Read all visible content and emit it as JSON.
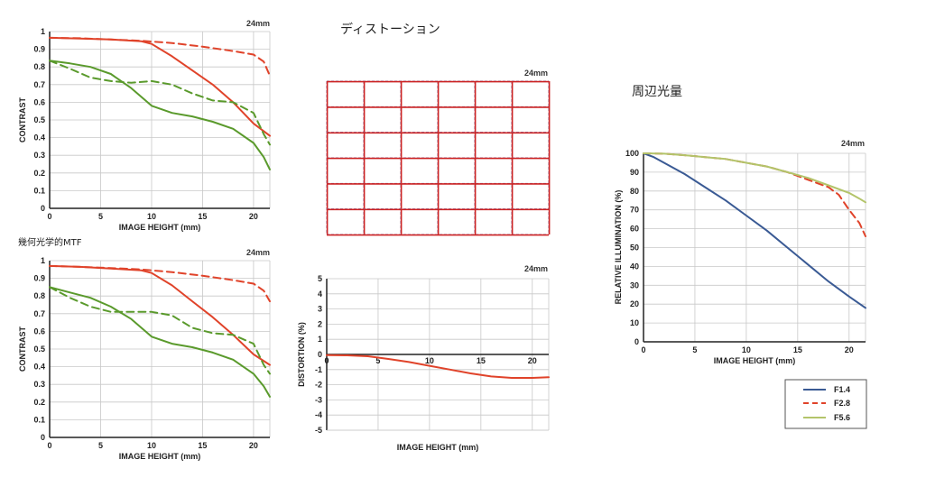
{
  "headings": {
    "distortion": "ディストーション",
    "illumination": "周辺光量",
    "mtf": "幾何光学的MTF"
  },
  "lens_label": "24mm",
  "colors": {
    "red": "#e0432a",
    "green": "#5a9a2c",
    "blue": "#3a5a94",
    "yellowgreen": "#b3c46a",
    "grid": "#c8c8c8",
    "dist_grid": "#cc2222",
    "dist_grid_alt": "#7a7ab8"
  },
  "chart_data": [
    {
      "id": "mtf1",
      "type": "line",
      "title": "24mm",
      "xlabel": "IMAGE HEIGHT (mm)",
      "ylabel": "CONTRAST",
      "xlim": [
        0,
        21.6
      ],
      "ylim": [
        0,
        1
      ],
      "xticks": [
        "0",
        "5",
        "10",
        "15",
        "20"
      ],
      "yticks": [
        "0",
        "0.1",
        "0.2",
        "0.3",
        "0.4",
        "0.5",
        "0.6",
        "0.7",
        "0.8",
        "0.9",
        "1"
      ],
      "grid": true,
      "series": [
        {
          "color": "red",
          "dash": false,
          "x": [
            0,
            3,
            6,
            9,
            10,
            12,
            14,
            16,
            18,
            20,
            21.6
          ],
          "y": [
            0.965,
            0.96,
            0.955,
            0.945,
            0.93,
            0.86,
            0.78,
            0.7,
            0.6,
            0.48,
            0.41
          ]
        },
        {
          "color": "red",
          "dash": true,
          "x": [
            0,
            3,
            6,
            9,
            12,
            15,
            18,
            20,
            21,
            21.6
          ],
          "y": [
            0.965,
            0.962,
            0.955,
            0.948,
            0.935,
            0.915,
            0.89,
            0.87,
            0.83,
            0.75
          ]
        },
        {
          "color": "green",
          "dash": false,
          "x": [
            0,
            2,
            4,
            6,
            8,
            10,
            12,
            14,
            16,
            18,
            20,
            21,
            21.6
          ],
          "y": [
            0.835,
            0.82,
            0.8,
            0.76,
            0.68,
            0.58,
            0.54,
            0.52,
            0.49,
            0.45,
            0.37,
            0.29,
            0.22
          ]
        },
        {
          "color": "green",
          "dash": true,
          "x": [
            0,
            2,
            4,
            6,
            8,
            10,
            12,
            14,
            16,
            18,
            20,
            21,
            21.6
          ],
          "y": [
            0.835,
            0.79,
            0.74,
            0.72,
            0.71,
            0.72,
            0.7,
            0.65,
            0.61,
            0.6,
            0.54,
            0.42,
            0.36
          ]
        }
      ]
    },
    {
      "id": "mtf2",
      "type": "line",
      "title": "24mm",
      "xlabel": "IMAGE HEIGHT (mm)",
      "ylabel": "CONTRAST",
      "xlim": [
        0,
        21.6
      ],
      "ylim": [
        0,
        1
      ],
      "xticks": [
        "0",
        "5",
        "10",
        "15",
        "20"
      ],
      "yticks": [
        "0",
        "0.1",
        "0.2",
        "0.3",
        "0.4",
        "0.5",
        "0.6",
        "0.7",
        "0.8",
        "0.9",
        "1"
      ],
      "grid": true,
      "series": [
        {
          "color": "red",
          "dash": false,
          "x": [
            0,
            3,
            6,
            9,
            10,
            12,
            14,
            16,
            18,
            20,
            21.6
          ],
          "y": [
            0.97,
            0.965,
            0.955,
            0.945,
            0.93,
            0.86,
            0.77,
            0.68,
            0.58,
            0.47,
            0.41
          ]
        },
        {
          "color": "red",
          "dash": true,
          "x": [
            0,
            3,
            6,
            9,
            12,
            15,
            18,
            20,
            21,
            21.6
          ],
          "y": [
            0.97,
            0.965,
            0.958,
            0.95,
            0.935,
            0.915,
            0.89,
            0.87,
            0.83,
            0.77
          ]
        },
        {
          "color": "green",
          "dash": false,
          "x": [
            0,
            2,
            4,
            6,
            8,
            10,
            12,
            14,
            16,
            18,
            20,
            21,
            21.6
          ],
          "y": [
            0.85,
            0.82,
            0.79,
            0.74,
            0.67,
            0.57,
            0.53,
            0.51,
            0.48,
            0.44,
            0.36,
            0.29,
            0.23
          ]
        },
        {
          "color": "green",
          "dash": true,
          "x": [
            0,
            2,
            4,
            6,
            8,
            10,
            12,
            14,
            16,
            18,
            20,
            21,
            21.6
          ],
          "y": [
            0.85,
            0.79,
            0.74,
            0.71,
            0.71,
            0.71,
            0.69,
            0.62,
            0.59,
            0.58,
            0.53,
            0.41,
            0.36
          ]
        }
      ]
    },
    {
      "id": "distortion",
      "type": "line",
      "title": "24mm",
      "xlabel": "IMAGE HEIGHT (mm)",
      "ylabel": "DISTORTION (%)",
      "xlim": [
        0,
        21.6
      ],
      "ylim": [
        -5,
        5
      ],
      "xticks": [
        "0",
        "5",
        "10",
        "15",
        "20"
      ],
      "yticks": [
        "-5",
        "-4",
        "-3",
        "-2",
        "-1",
        "0",
        "1",
        "2",
        "3",
        "4",
        "5"
      ],
      "grid": true,
      "series": [
        {
          "color": "red",
          "dash": false,
          "x": [
            0,
            2,
            4,
            6,
            8,
            10,
            12,
            14,
            16,
            18,
            20,
            21.6
          ],
          "y": [
            -0.05,
            -0.06,
            -0.12,
            -0.3,
            -0.5,
            -0.75,
            -1.0,
            -1.25,
            -1.45,
            -1.55,
            -1.55,
            -1.5
          ]
        }
      ]
    },
    {
      "id": "illumination",
      "type": "line",
      "title": "24mm",
      "xlabel": "IMAGE HEIGHT (mm)",
      "ylabel": "RELATIVE ILLUMINATION (%)",
      "xlim": [
        0,
        21.6
      ],
      "ylim": [
        0,
        100
      ],
      "xticks": [
        "0",
        "5",
        "10",
        "15",
        "20"
      ],
      "yticks": [
        "0",
        "10",
        "20",
        "30",
        "40",
        "50",
        "60",
        "70",
        "80",
        "90",
        "100"
      ],
      "grid": true,
      "legend_position": "bottom-right",
      "series": [
        {
          "name": "F1.4",
          "color": "blue",
          "dash": false,
          "x": [
            0,
            1,
            2,
            4,
            6,
            8,
            10,
            12,
            14,
            16,
            18,
            20,
            21.6
          ],
          "y": [
            100,
            98,
            95,
            89,
            82,
            75,
            67,
            59,
            50,
            41,
            32,
            24,
            18
          ]
        },
        {
          "name": "F2.8",
          "color": "red",
          "dash": true,
          "x": [
            0,
            2,
            4,
            6,
            8,
            10,
            12,
            14,
            16,
            18,
            19,
            20,
            21,
            21.6
          ],
          "y": [
            100,
            99.8,
            99,
            98,
            97,
            95,
            93,
            90,
            86,
            82,
            78,
            70,
            63,
            56
          ]
        },
        {
          "name": "F5.6",
          "color": "yellowgreen",
          "dash": false,
          "x": [
            0,
            2,
            4,
            6,
            8,
            10,
            12,
            14,
            16,
            18,
            20,
            21,
            21.6
          ],
          "y": [
            100,
            99.8,
            99,
            98,
            97,
            95,
            93,
            90,
            87,
            83,
            79,
            76,
            74
          ]
        }
      ]
    }
  ]
}
